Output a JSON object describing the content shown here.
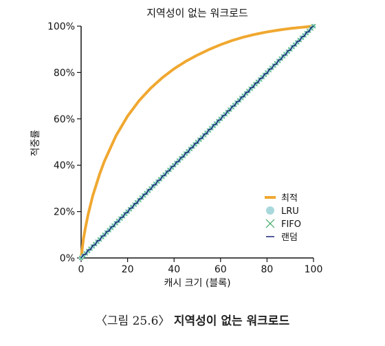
{
  "caption": {
    "figure_label": "〈그림 25.6〉",
    "figure_title": "지역성이 없는 워크로드"
  },
  "chart_data": {
    "type": "line",
    "title": "지역성이 없는 워크로드",
    "xlabel": "캐시 크기 (블록)",
    "ylabel": "적중률",
    "xlim": [
      0,
      100
    ],
    "ylim": [
      0,
      100
    ],
    "x_ticks": [
      0,
      20,
      40,
      60,
      80,
      100
    ],
    "y_ticks": [
      0,
      20,
      40,
      60,
      80,
      100
    ],
    "y_tick_labels": [
      "0%",
      "20%",
      "40%",
      "60%",
      "80%",
      "100%"
    ],
    "grid": false,
    "legend_position": "bottom-right",
    "series": [
      {
        "name": "최적",
        "color": "#f0a830",
        "x": [
          0,
          1,
          2,
          3,
          5,
          8,
          10,
          15,
          20,
          25,
          30,
          35,
          40,
          45,
          50,
          55,
          60,
          65,
          70,
          75,
          80,
          85,
          90,
          95,
          100
        ],
        "values": [
          0,
          8.3,
          13.8,
          18.7,
          26.8,
          36.3,
          41.7,
          52.7,
          61.2,
          67.9,
          73.3,
          77.8,
          81.6,
          84.8,
          87.5,
          89.9,
          92.0,
          93.8,
          95.3,
          96.5,
          97.5,
          98.3,
          99.0,
          99.5,
          100
        ]
      },
      {
        "name": "LRU",
        "color": "#a8d8dc",
        "x": [
          0,
          10,
          20,
          30,
          40,
          50,
          60,
          70,
          80,
          90,
          100
        ],
        "values": [
          0,
          10,
          20,
          30,
          40,
          50,
          60,
          70,
          80,
          90,
          100
        ]
      },
      {
        "name": "FIFO",
        "color": "#3aa860",
        "x": [
          0,
          10,
          20,
          30,
          40,
          50,
          60,
          70,
          80,
          90,
          100
        ],
        "values": [
          0,
          10,
          20,
          30,
          40,
          50,
          60,
          70,
          80,
          90,
          100
        ]
      },
      {
        "name": "랜덤",
        "color": "#1a237e",
        "x": [
          0,
          10,
          20,
          30,
          40,
          50,
          60,
          70,
          80,
          90,
          100
        ],
        "values": [
          0,
          10,
          20,
          30,
          40,
          50,
          60,
          70,
          80,
          90,
          100
        ]
      }
    ]
  }
}
